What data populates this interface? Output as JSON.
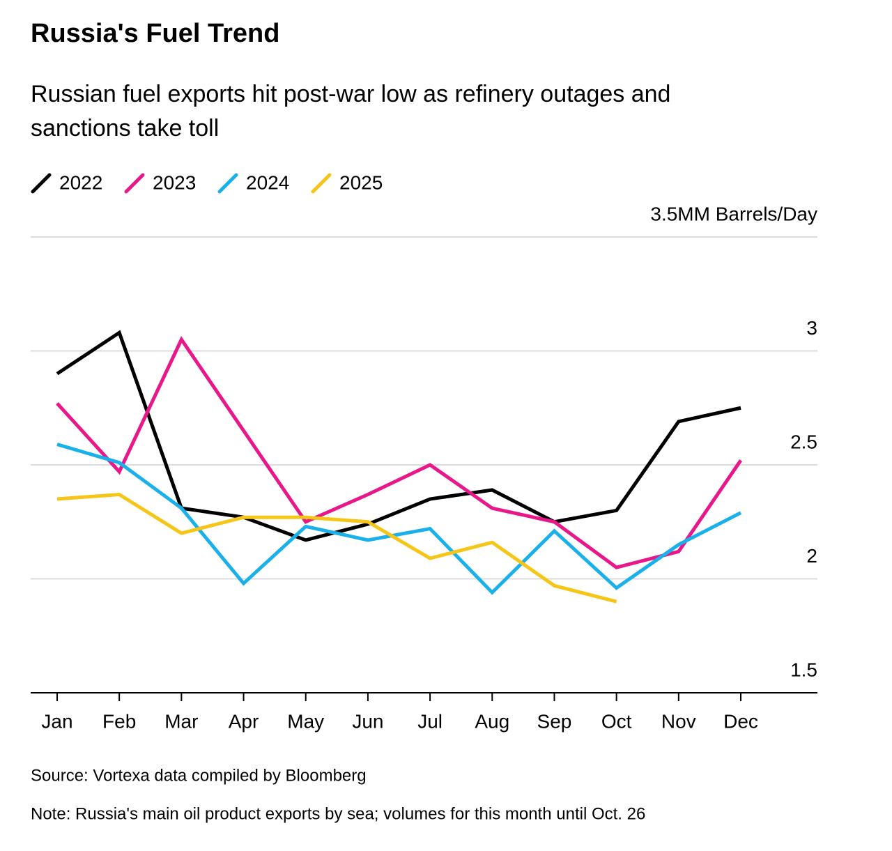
{
  "chart_data": {
    "type": "line",
    "title": "Russia's Fuel Trend",
    "subtitle": [
      "Russian fuel exports hit post-war low as refinery outages and",
      "sanctions take toll"
    ],
    "categories": [
      "Jan",
      "Feb",
      "Mar",
      "Apr",
      "May",
      "Jun",
      "Jul",
      "Aug",
      "Sep",
      "Oct",
      "Nov",
      "Dec"
    ],
    "series": [
      {
        "name": "2022",
        "color": "#000000",
        "values": [
          2.9,
          3.08,
          2.31,
          2.27,
          2.17,
          2.24,
          2.35,
          2.39,
          2.25,
          2.3,
          2.69,
          2.75
        ]
      },
      {
        "name": "2023",
        "color": "#e8178a",
        "values": [
          2.77,
          2.47,
          3.05,
          2.65,
          2.25,
          2.37,
          2.5,
          2.31,
          2.25,
          2.05,
          2.12,
          2.52
        ]
      },
      {
        "name": "2024",
        "color": "#1ab0ea",
        "values": [
          2.59,
          2.51,
          2.31,
          1.98,
          2.23,
          2.17,
          2.22,
          1.94,
          2.21,
          1.96,
          2.15,
          2.29
        ]
      },
      {
        "name": "2025",
        "color": "#f5c518",
        "values": [
          2.35,
          2.37,
          2.2,
          2.27,
          2.27,
          2.25,
          2.09,
          2.16,
          1.97,
          1.9,
          null,
          null
        ]
      }
    ],
    "ylim": [
      1.5,
      3.5
    ],
    "yticks": [
      1.5,
      2.0,
      2.5,
      3.0,
      {
        "value": 3.5,
        "label": "3.5MM Barrels/Day"
      }
    ],
    "grid": true,
    "legend": "top-left",
    "source": "Source: Vortexa data compiled by Bloomberg",
    "note": "Note: Russia's main oil product exports by sea; volumes for this month until Oct. 26"
  }
}
